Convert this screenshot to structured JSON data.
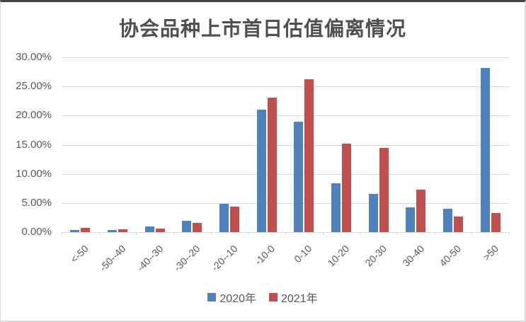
{
  "frame": {
    "background": "#ffffff",
    "border_top_color": "#454545",
    "border_side_color": "#d9d9d9"
  },
  "chart_data": {
    "type": "bar",
    "title": "协会品种上市首日估值偏离情况",
    "categories": [
      "<-50",
      "-50--40",
      "-40--30",
      "-30--20",
      "-20--10",
      "-10-0",
      "0-10",
      "10-20",
      "20-30",
      "30-40",
      "40-50",
      ">50"
    ],
    "series": [
      {
        "name": "2020年",
        "color": "#4F81BD",
        "values": [
          0.4,
          0.4,
          1.0,
          1.9,
          4.8,
          21.0,
          19.0,
          8.4,
          6.6,
          4.3,
          4.0,
          28.2
        ]
      },
      {
        "name": "2021年",
        "color": "#C0504D",
        "values": [
          0.7,
          0.5,
          0.6,
          1.6,
          4.4,
          23.1,
          26.2,
          15.2,
          14.4,
          7.3,
          2.7,
          3.3
        ]
      }
    ],
    "xlabel": "",
    "ylabel": "",
    "ylim": [
      0,
      30
    ],
    "ytick_step": 5,
    "yticklabels": [
      "0.00%",
      "5.00%",
      "10.00%",
      "15.00%",
      "20.00%",
      "25.00%",
      "30.00%"
    ],
    "grid": "horizontal",
    "gridline_color": "#d9d9d9",
    "text_color": "#595959",
    "legend_position": "bottom"
  }
}
